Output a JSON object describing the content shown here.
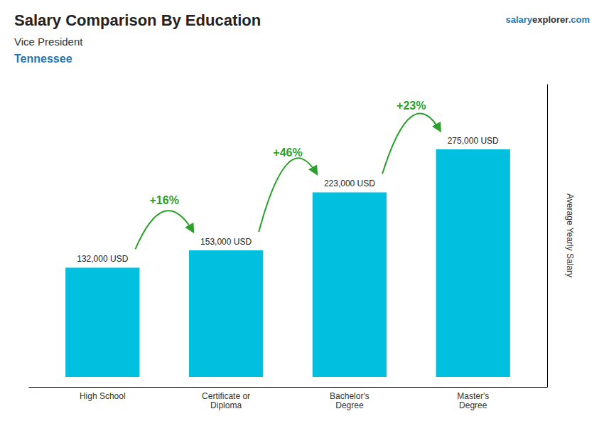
{
  "chart_data": {
    "type": "bar",
    "title": "Salary Comparison By Education",
    "subtitle": [
      "Vice President",
      "Tennessee"
    ],
    "watermark": [
      "salary",
      "explorer",
      ".com"
    ],
    "ylabel": "Average Yearly Salary",
    "categories": [
      "High School",
      "Certificate or\nDiploma",
      "Bachelor's\nDegree",
      "Master's\nDegree"
    ],
    "values": [
      132000,
      153000,
      223000,
      275000
    ],
    "value_labels": [
      "132,000 USD",
      "153,000 USD",
      "223,000 USD",
      "275,000 USD"
    ],
    "data_labels": true,
    "annotations": [
      "+16%",
      "+46%",
      "+23%"
    ],
    "color": "#00bfdf",
    "ylim": [
      -12000,
      354000
    ],
    "yticks": [],
    "tick_labels": "x",
    "grid": false
  }
}
